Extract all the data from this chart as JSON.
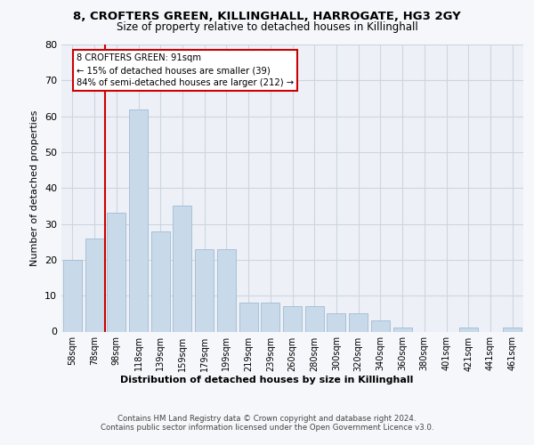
{
  "title1": "8, CROFTERS GREEN, KILLINGHALL, HARROGATE, HG3 2GY",
  "title2": "Size of property relative to detached houses in Killinghall",
  "xlabel": "Distribution of detached houses by size in Killinghall",
  "ylabel": "Number of detached properties",
  "categories": [
    "58sqm",
    "78sqm",
    "98sqm",
    "118sqm",
    "139sqm",
    "159sqm",
    "179sqm",
    "199sqm",
    "219sqm",
    "239sqm",
    "260sqm",
    "280sqm",
    "300sqm",
    "320sqm",
    "340sqm",
    "360sqm",
    "380sqm",
    "401sqm",
    "421sqm",
    "441sqm",
    "461sqm"
  ],
  "values": [
    20,
    26,
    33,
    62,
    28,
    35,
    23,
    23,
    8,
    8,
    7,
    7,
    5,
    5,
    3,
    1,
    0,
    0,
    1,
    0,
    1
  ],
  "bar_color": "#c8d9ea",
  "bar_edge_color": "#a8c0d6",
  "ylim": [
    0,
    80
  ],
  "yticks": [
    0,
    10,
    20,
    30,
    40,
    50,
    60,
    70,
    80
  ],
  "vline_color": "#cc0000",
  "annotation_text": "8 CROFTERS GREEN: 91sqm\n← 15% of detached houses are smaller (39)\n84% of semi-detached houses are larger (212) →",
  "annotation_box_color": "#ffffff",
  "annotation_box_edge": "#cc0000",
  "footer_text": "Contains HM Land Registry data © Crown copyright and database right 2024.\nContains public sector information licensed under the Open Government Licence v3.0.",
  "bg_color": "#edf1f7",
  "grid_color": "#cdd5e0",
  "fig_bg": "#f5f7fa"
}
